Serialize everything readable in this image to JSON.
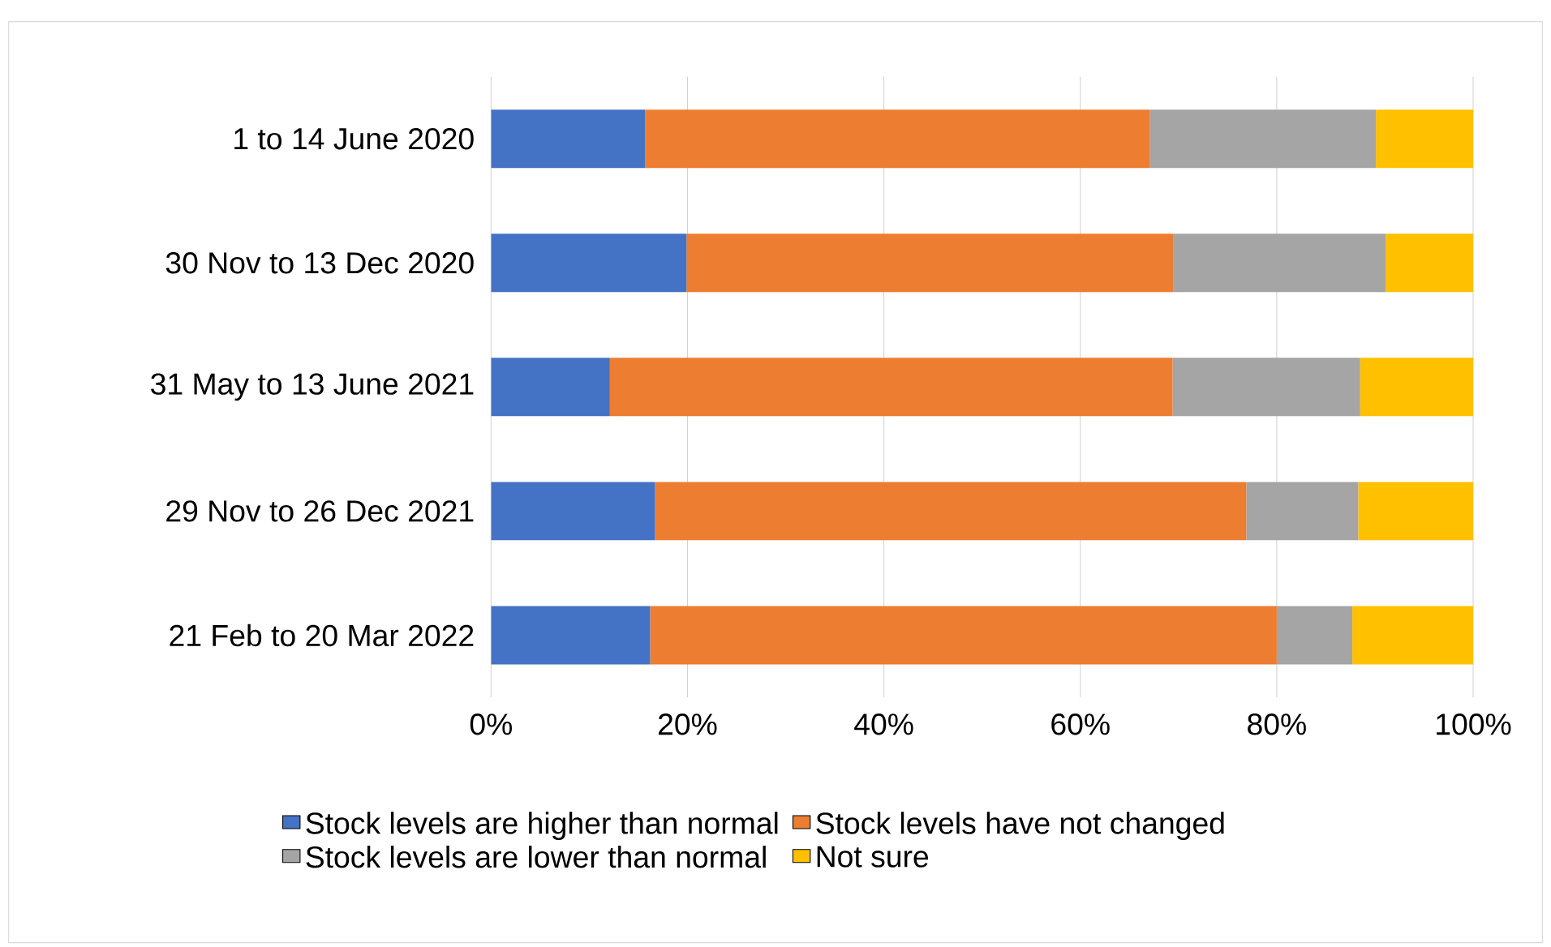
{
  "chart_data": {
    "type": "bar",
    "orientation": "horizontal",
    "stacked": true,
    "categories": [
      "1 to 14 June 2020",
      "30 Nov to 13 Dec 2020",
      "31 May to 13 June 2021",
      "29 Nov to 26 Dec 2021",
      "21 Feb to 20 Mar 2022"
    ],
    "series": [
      {
        "name": "Stock levels are higher than normal",
        "color": "#4472c4",
        "values": [
          15.7,
          19.9,
          12.1,
          16.7,
          16.2
        ]
      },
      {
        "name": "Stock levels have not changed",
        "color": "#ed7d31",
        "values": [
          51.4,
          49.6,
          57.3,
          60.2,
          63.8
        ]
      },
      {
        "name": "Stock levels are lower than normal",
        "color": "#a5a5a5",
        "values": [
          23.0,
          21.6,
          19.1,
          11.4,
          7.7
        ]
      },
      {
        "name": "Not sure",
        "color": "#ffc000",
        "values": [
          9.9,
          8.9,
          11.5,
          11.7,
          12.3
        ]
      }
    ],
    "xlim": [
      0,
      100
    ],
    "xticks": [
      {
        "value": 0,
        "label": "0%"
      },
      {
        "value": 20,
        "label": "20%"
      },
      {
        "value": 40,
        "label": "40%"
      },
      {
        "value": 60,
        "label": "60%"
      },
      {
        "value": 80,
        "label": "80%"
      },
      {
        "value": 100,
        "label": "100%"
      }
    ],
    "grid": "x",
    "legend": "bottom"
  }
}
